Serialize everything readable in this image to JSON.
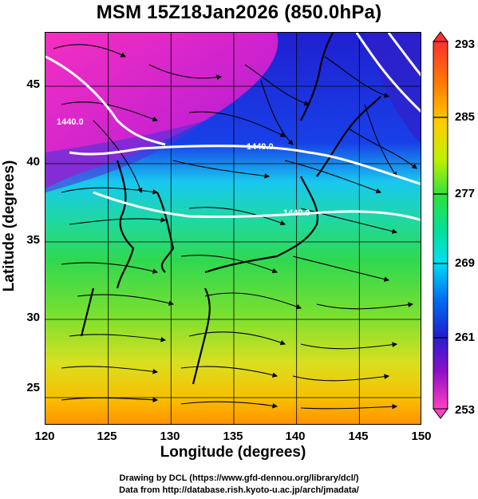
{
  "title": "MSM 15Z18Jan2026 (850.0hPa)",
  "xaxis": {
    "label": "Longitude (degrees)",
    "ticks": [
      "120",
      "125",
      "130",
      "135",
      "140",
      "145",
      "150"
    ]
  },
  "yaxis": {
    "label": "Latitude  (degrees)",
    "ticks": [
      "45",
      "40",
      "35",
      "30",
      "25"
    ]
  },
  "colorbar": {
    "ticks": [
      "293",
      "285",
      "277",
      "269",
      "261",
      "253"
    ],
    "range": [
      253,
      293
    ],
    "colors": [
      "#ff3b3b",
      "#ff8c00",
      "#ffcc00",
      "#c8f000",
      "#40e040",
      "#00e080",
      "#00e0e0",
      "#0090f0",
      "#2030e0",
      "#6010c0",
      "#c000c0",
      "#ff40c0"
    ]
  },
  "contours": {
    "labels": [
      "1440.0",
      "1440.0",
      "1440.0"
    ]
  },
  "credits": {
    "line1": "Drawing by DCL (https://www.gfd-dennou.org/library/dcl/)",
    "line2": "Data from http://database.rish.kyoto-u.ac.jp/arch/jmadata/"
  },
  "chart_data": {
    "type": "heatmap",
    "title": "MSM 15Z18Jan2026 (850.0hPa)",
    "xlabel": "Longitude (degrees)",
    "ylabel": "Latitude  (degrees)",
    "xlim": [
      120,
      150
    ],
    "ylim": [
      22.4,
      47.6
    ],
    "colorbar_range": [
      253,
      293
    ],
    "colorbar_ticks": [
      293,
      285,
      277,
      269,
      261,
      253
    ],
    "overlays": [
      "streamlines",
      "coastlines",
      "geopotential height contours"
    ],
    "contour_labels": [
      "1440.0",
      "1440.0",
      "1440.0"
    ],
    "grid": true
  }
}
